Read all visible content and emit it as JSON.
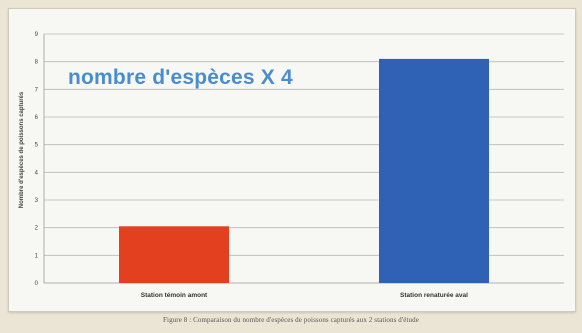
{
  "chart_data": {
    "type": "bar",
    "categories": [
      "Station témoin amont",
      "Station renaturée aval"
    ],
    "values": [
      2.05,
      8.1
    ],
    "bar_colors": [
      "#e2401e",
      "#2f62b4"
    ],
    "ylabel": "Nombre d'espèces de poissons capturés",
    "ylim": [
      0,
      9
    ],
    "yticks": [
      0,
      1,
      2,
      3,
      4,
      5,
      6,
      7,
      8,
      9
    ],
    "grid": true,
    "annotation": "nombre d'espèces X 4",
    "caption": "Figure 8 : Comparaison du nombre d'espèces de poissons capturés aux 2 stations d'étude"
  }
}
